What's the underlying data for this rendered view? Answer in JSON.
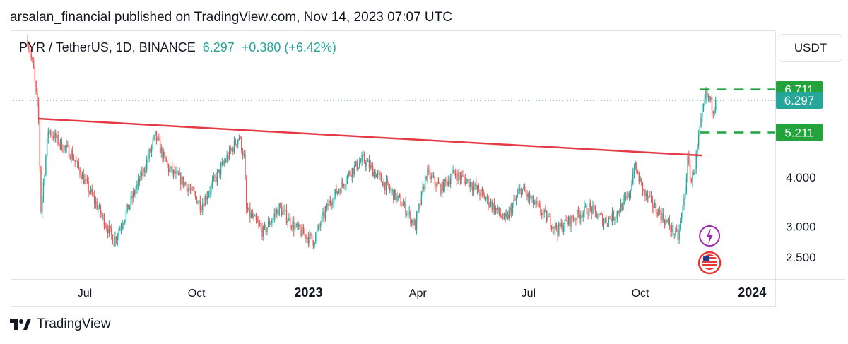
{
  "header": {
    "publisher": "arsalan_financial published on TradingView.com, Nov 14, 2023 07:07 UTC"
  },
  "legend": {
    "symbol": "PYR / TetherUS, 1D, BINANCE",
    "last": "6.297",
    "change": "+0.380 (+6.42%)"
  },
  "toolbar": {
    "currency": "USDT"
  },
  "footer": {
    "brand": "TradingView",
    "logo_icon": "tradingview-logo-icon"
  },
  "colors": {
    "up": "#26a69a",
    "down": "#ef5350",
    "trendline": "#e53945",
    "level": "#22a33b",
    "last_price": "#26a69a",
    "text": "#131722",
    "grid": "#e0e3eb"
  },
  "chart_data": {
    "type": "candlestick",
    "symbol": "PYR / TetherUS",
    "interval": "1D",
    "exchange": "BINANCE",
    "y_scale": "log",
    "ylim": [
      2.2,
      9.5
    ],
    "xlim": [
      "2022-05-01",
      "2024-01-20"
    ],
    "x_ticks": [
      {
        "label": "Jul",
        "date": "2022-07-01",
        "bold": false
      },
      {
        "label": "Oct",
        "date": "2022-10-01",
        "bold": false
      },
      {
        "label": "2023",
        "date": "2023-01-01",
        "bold": true
      },
      {
        "label": "Apr",
        "date": "2023-04-01",
        "bold": false
      },
      {
        "label": "Jul",
        "date": "2023-07-01",
        "bold": false
      },
      {
        "label": "Oct",
        "date": "2023-10-01",
        "bold": false
      },
      {
        "label": "2024",
        "date": "2024-01-01",
        "bold": true
      }
    ],
    "y_ticks": [
      {
        "label": "2.500",
        "value": 2.5
      },
      {
        "label": "3.000",
        "value": 3.0
      },
      {
        "label": "4.000",
        "value": 4.0
      }
    ],
    "price_tags": [
      {
        "label": "6.711",
        "value": 6.711,
        "color": "#22a33b"
      },
      {
        "label": "6.297",
        "value": 6.297,
        "color": "#26a69a"
      },
      {
        "label": "5.211",
        "value": 5.211,
        "color": "#22a33b"
      }
    ],
    "last_price": 6.297,
    "horizontal_levels": [
      {
        "value": 6.711,
        "color": "#22a33b",
        "style": "dashed"
      },
      {
        "value": 5.211,
        "color": "#22a33b",
        "style": "dashed"
      }
    ],
    "trendline": {
      "from": {
        "date": "2022-05-24",
        "value": 5.65
      },
      "to": {
        "date": "2023-11-21",
        "value": 4.55
      },
      "color": "#e53945"
    },
    "price_path": [
      [
        "2022-05-15",
        9.0
      ],
      [
        "2022-05-20",
        7.5
      ],
      [
        "2022-05-24",
        5.6
      ],
      [
        "2022-05-26",
        3.3
      ],
      [
        "2022-06-01",
        5.3
      ],
      [
        "2022-06-10",
        4.9
      ],
      [
        "2022-06-20",
        4.6
      ],
      [
        "2022-07-01",
        3.9
      ],
      [
        "2022-07-15",
        3.2
      ],
      [
        "2022-07-25",
        2.75
      ],
      [
        "2022-08-05",
        3.3
      ],
      [
        "2022-08-20",
        4.3
      ],
      [
        "2022-08-28",
        5.1
      ],
      [
        "2022-09-08",
        4.2
      ],
      [
        "2022-09-20",
        3.9
      ],
      [
        "2022-10-05",
        3.4
      ],
      [
        "2022-10-15",
        3.9
      ],
      [
        "2022-10-28",
        4.6
      ],
      [
        "2022-11-05",
        5.1
      ],
      [
        "2022-11-09",
        4.5
      ],
      [
        "2022-11-11",
        3.3
      ],
      [
        "2022-11-25",
        2.9
      ],
      [
        "2022-12-08",
        3.35
      ],
      [
        "2022-12-20",
        3.0
      ],
      [
        "2023-01-05",
        2.75
      ],
      [
        "2023-01-18",
        3.45
      ],
      [
        "2023-02-05",
        4.15
      ],
      [
        "2023-02-15",
        4.45
      ],
      [
        "2023-02-28",
        4.0
      ],
      [
        "2023-03-20",
        3.4
      ],
      [
        "2023-03-30",
        3.0
      ],
      [
        "2023-04-08",
        4.1
      ],
      [
        "2023-04-20",
        3.75
      ],
      [
        "2023-05-01",
        4.1
      ],
      [
        "2023-05-15",
        3.85
      ],
      [
        "2023-06-01",
        3.4
      ],
      [
        "2023-06-12",
        3.1
      ],
      [
        "2023-06-25",
        3.75
      ],
      [
        "2023-07-10",
        3.3
      ],
      [
        "2023-07-25",
        2.95
      ],
      [
        "2023-08-10",
        3.2
      ],
      [
        "2023-08-20",
        3.35
      ],
      [
        "2023-09-01",
        3.1
      ],
      [
        "2023-09-10",
        3.2
      ],
      [
        "2023-09-22",
        3.6
      ],
      [
        "2023-09-26",
        4.3
      ],
      [
        "2023-10-05",
        3.6
      ],
      [
        "2023-10-15",
        3.3
      ],
      [
        "2023-10-25",
        3.0
      ],
      [
        "2023-11-01",
        2.8
      ],
      [
        "2023-11-06",
        3.5
      ],
      [
        "2023-11-09",
        4.4
      ],
      [
        "2023-11-12",
        3.9
      ],
      [
        "2023-11-15",
        4.3
      ],
      [
        "2023-11-18",
        5.0
      ],
      [
        "2023-11-21",
        5.8
      ],
      [
        "2023-11-24",
        6.5
      ],
      [
        "2023-11-27",
        6.3
      ],
      [
        "2023-11-30",
        6.0
      ],
      [
        "2023-12-02",
        6.297
      ]
    ],
    "marks": [
      {
        "type": "event",
        "icon": "lightning-bolt-icon",
        "date": "2023-11-27"
      },
      {
        "type": "economic-event",
        "icon": "us-flag-icon",
        "date": "2023-11-27"
      }
    ]
  }
}
